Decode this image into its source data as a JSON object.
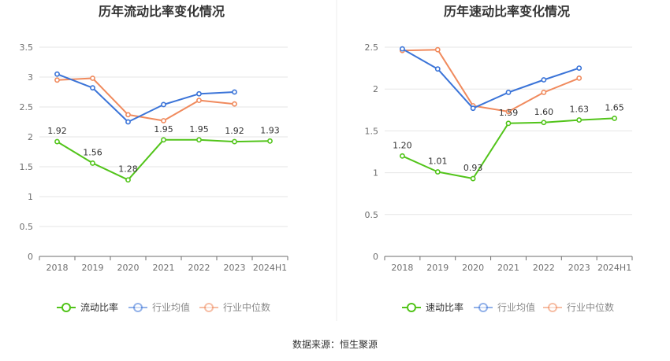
{
  "source_label": "数据来源：恒生聚源",
  "colors": {
    "main": "#52c41a",
    "avg": "#3b74d8",
    "median": "#f08a5d",
    "grid": "#e6e6e6",
    "axis": "#6e6e6e"
  },
  "chart_data": [
    {
      "type": "line",
      "title": "历年流动比率变化情况",
      "categories": [
        "2018",
        "2019",
        "2020",
        "2021",
        "2022",
        "2023",
        "2024H1"
      ],
      "ylim": [
        0,
        3.5
      ],
      "yticks": [
        "0",
        "0.5",
        "1",
        "1.5",
        "2",
        "2.5",
        "3",
        "3.5"
      ],
      "grid": true,
      "legend_position": "bottom",
      "series": [
        {
          "name": "流动比率",
          "key": "main",
          "values": [
            1.92,
            1.56,
            1.28,
            1.95,
            1.95,
            1.92,
            1.93
          ],
          "labels": [
            "1.92",
            "1.56",
            "1.28",
            "1.95",
            "1.95",
            "1.92",
            "1.93"
          ]
        },
        {
          "name": "行业均值",
          "key": "avg",
          "values": [
            3.05,
            2.82,
            2.25,
            2.54,
            2.72,
            2.75,
            null
          ]
        },
        {
          "name": "行业中位数",
          "key": "median",
          "values": [
            2.95,
            2.98,
            2.37,
            2.27,
            2.61,
            2.55,
            null
          ]
        }
      ]
    },
    {
      "type": "line",
      "title": "历年速动比率变化情况",
      "categories": [
        "2018",
        "2019",
        "2020",
        "2021",
        "2022",
        "2023",
        "2024H1"
      ],
      "ylim": [
        0,
        2.5
      ],
      "yticks": [
        "0",
        "0.5",
        "1",
        "1.5",
        "2",
        "2.5"
      ],
      "grid": true,
      "legend_position": "bottom",
      "series": [
        {
          "name": "速动比率",
          "key": "main",
          "values": [
            1.2,
            1.01,
            0.93,
            1.59,
            1.6,
            1.63,
            1.65
          ],
          "labels": [
            "1.20",
            "1.01",
            "0.93",
            "1.59",
            "1.60",
            "1.63",
            "1.65"
          ]
        },
        {
          "name": "行业均值",
          "key": "avg",
          "values": [
            2.48,
            2.24,
            1.77,
            1.96,
            2.11,
            2.25,
            null
          ]
        },
        {
          "name": "行业中位数",
          "key": "median",
          "values": [
            2.46,
            2.47,
            1.8,
            1.73,
            1.96,
            2.13,
            null
          ]
        }
      ]
    }
  ]
}
